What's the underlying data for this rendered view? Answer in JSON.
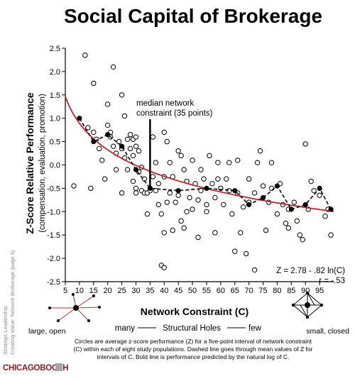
{
  "title": "Social Capital of Brokerage",
  "side_note": [
    "Strategic Leadership",
    "Creating Value: Network Brokerage (page 5)"
  ],
  "logo_text": "CHICAGOBOOTH",
  "chart_data": {
    "type": "scatter",
    "title": "Social Capital of Brokerage",
    "xlabel": "Network Constraint (C)",
    "ylabel": "Z-Score Relative Performance",
    "ylabel2": "(compensation, evaluation, promotion)",
    "xlim": [
      5,
      100
    ],
    "ylim": [
      -2.5,
      2.5
    ],
    "xticks": [
      5,
      10,
      15,
      20,
      25,
      30,
      35,
      40,
      45,
      50,
      55,
      60,
      65,
      70,
      75,
      80,
      85,
      90,
      95
    ],
    "yticks": [
      -2.5,
      -2.0,
      -1.5,
      -1.0,
      -0.5,
      0.0,
      0.5,
      1.0,
      1.5,
      2.0,
      2.5
    ],
    "xtick_labels": [
      "5",
      "10",
      "15",
      "20",
      "25",
      "30",
      "35",
      "40",
      "45",
      "50",
      "55",
      "60",
      "65",
      "70",
      "75",
      "80",
      "85",
      "90",
      "95"
    ],
    "ytick_labels": [
      "-2.5",
      "-2.0",
      "-1.5",
      "-1.0",
      "-0.5",
      "0.0",
      "0.5",
      "1.0",
      "1.5",
      "2.0",
      "2.5"
    ],
    "open_points": [
      [
        8,
        -0.45
      ],
      [
        12,
        2.35
      ],
      [
        13,
        0.8
      ],
      [
        14,
        -0.5
      ],
      [
        15,
        1.75
      ],
      [
        15,
        0.7
      ],
      [
        16,
        0.55
      ],
      [
        17,
        0.35
      ],
      [
        18,
        0.1
      ],
      [
        19,
        -0.3
      ],
      [
        20,
        1.3
      ],
      [
        20,
        0.85
      ],
      [
        21,
        0.7
      ],
      [
        21,
        0.6
      ],
      [
        22,
        2.1
      ],
      [
        22,
        0.4
      ],
      [
        23,
        0.25
      ],
      [
        23,
        -0.1
      ],
      [
        24,
        0.5
      ],
      [
        25,
        1.5
      ],
      [
        25,
        0.35
      ],
      [
        25,
        -0.6
      ],
      [
        26,
        1.05
      ],
      [
        26,
        0.15
      ],
      [
        27,
        0.55
      ],
      [
        27,
        -0.1
      ],
      [
        28,
        0.65
      ],
      [
        28,
        0.35
      ],
      [
        29,
        0.55
      ],
      [
        29,
        0.2
      ],
      [
        29,
        -0.35
      ],
      [
        30,
        0.6
      ],
      [
        30,
        0.4
      ],
      [
        30,
        -0.5
      ],
      [
        30,
        -0.6
      ],
      [
        31,
        0.3
      ],
      [
        31,
        -0.15
      ],
      [
        32,
        -0.05
      ],
      [
        32,
        -0.55
      ],
      [
        33,
        -0.3
      ],
      [
        33,
        -0.6
      ],
      [
        34,
        -1.05
      ],
      [
        34,
        -0.6
      ],
      [
        35,
        -0.55
      ],
      [
        36,
        0.6
      ],
      [
        36,
        -0.25
      ],
      [
        37,
        0.05
      ],
      [
        37,
        -0.55
      ],
      [
        38,
        -0.4
      ],
      [
        38,
        -0.85
      ],
      [
        39,
        -1.05
      ],
      [
        39,
        -2.15
      ],
      [
        40,
        0.7
      ],
      [
        40,
        -0.25
      ],
      [
        40,
        -2.2
      ],
      [
        40,
        -1.45
      ],
      [
        41,
        0.5
      ],
      [
        41,
        -0.8
      ],
      [
        42,
        0.05
      ],
      [
        42,
        -0.6
      ],
      [
        43,
        -0.25
      ],
      [
        43,
        -1.4
      ],
      [
        44,
        -0.8
      ],
      [
        45,
        0.3
      ],
      [
        45,
        -0.65
      ],
      [
        46,
        0.2
      ],
      [
        46,
        -1.2
      ],
      [
        47,
        -0.1
      ],
      [
        47,
        -1.35
      ],
      [
        48,
        -0.35
      ],
      [
        48,
        -1.0
      ],
      [
        49,
        -0.7
      ],
      [
        50,
        0.1
      ],
      [
        50,
        -0.95
      ],
      [
        51,
        -0.4
      ],
      [
        52,
        -0.75
      ],
      [
        52,
        -1.55
      ],
      [
        53,
        -0.1
      ],
      [
        53,
        -0.55
      ],
      [
        54,
        -0.3
      ],
      [
        55,
        -0.85
      ],
      [
        55,
        -1.0
      ],
      [
        56,
        0.2
      ],
      [
        57,
        -0.4
      ],
      [
        58,
        -0.7
      ],
      [
        58,
        -1.45
      ],
      [
        59,
        0.05
      ],
      [
        59,
        -0.3
      ],
      [
        60,
        -0.5
      ],
      [
        61,
        -0.85
      ],
      [
        62,
        -0.3
      ],
      [
        63,
        0.05
      ],
      [
        63,
        -0.55
      ],
      [
        64,
        -1.05
      ],
      [
        65,
        -1.85
      ],
      [
        66,
        0.1
      ],
      [
        66,
        -0.6
      ],
      [
        67,
        -1.45
      ],
      [
        68,
        -0.9
      ],
      [
        69,
        -1.9
      ],
      [
        70,
        -0.8
      ],
      [
        70,
        -0.3
      ],
      [
        72,
        -0.6
      ],
      [
        72,
        -2.25
      ],
      [
        73,
        0.05
      ],
      [
        74,
        0.3
      ],
      [
        75,
        -0.45
      ],
      [
        76,
        -1.4
      ],
      [
        77,
        -0.8
      ],
      [
        78,
        0.05
      ],
      [
        78,
        -0.5
      ],
      [
        80,
        -1.05
      ],
      [
        81,
        -0.4
      ],
      [
        82,
        -0.85
      ],
      [
        83,
        -1.25
      ],
      [
        84,
        -1.35
      ],
      [
        84,
        -0.95
      ],
      [
        86,
        -0.8
      ],
      [
        87,
        -1.2
      ],
      [
        88,
        -1.5
      ],
      [
        89,
        -1.6
      ],
      [
        90,
        0.45
      ],
      [
        91,
        -0.95
      ],
      [
        92,
        -0.35
      ],
      [
        93,
        -0.55
      ],
      [
        95,
        -0.65
      ],
      [
        97,
        -1.1
      ],
      [
        98,
        -0.95
      ],
      [
        99,
        -1.5
      ]
    ],
    "mean_points": [
      [
        10,
        1.0
      ],
      [
        15,
        0.5
      ],
      [
        20,
        0.65
      ],
      [
        25,
        0.4
      ],
      [
        30,
        -0.1
      ],
      [
        35,
        -0.5
      ],
      [
        45,
        -0.55
      ],
      [
        55,
        -0.5
      ],
      [
        65,
        -0.55
      ],
      [
        70,
        -0.85
      ],
      [
        75,
        -0.7
      ],
      [
        80,
        -0.45
      ],
      [
        85,
        -0.95
      ],
      [
        90,
        -0.85
      ],
      [
        95,
        -0.5
      ],
      [
        99,
        -0.95
      ]
    ],
    "fit_equation": "Z = 2.78 - .82 ln(C)",
    "fit_r": "r = -.53",
    "fit": {
      "a": 2.78,
      "b": -0.82
    },
    "median_label_line1": "median network",
    "median_label_line2": "constraint (35 points)",
    "median_x": 35,
    "left_end_label": "large, open",
    "right_end_label": "small, closed",
    "axis_sub_left": "many",
    "axis_sub_mid": "Structural Holes",
    "axis_sub_right": "few",
    "caption_lines": [
      "Circles are average z-score performance (Z) for a five-point interval of network constraint",
      "(C) within each of eight study populations.  Dashed line goes through mean values of Z for",
      "intervals of C.  Bold line is performance predicted by the natural log of C."
    ],
    "grid": false,
    "colors": {
      "fit": "#c0282d",
      "points": "#000000"
    }
  }
}
